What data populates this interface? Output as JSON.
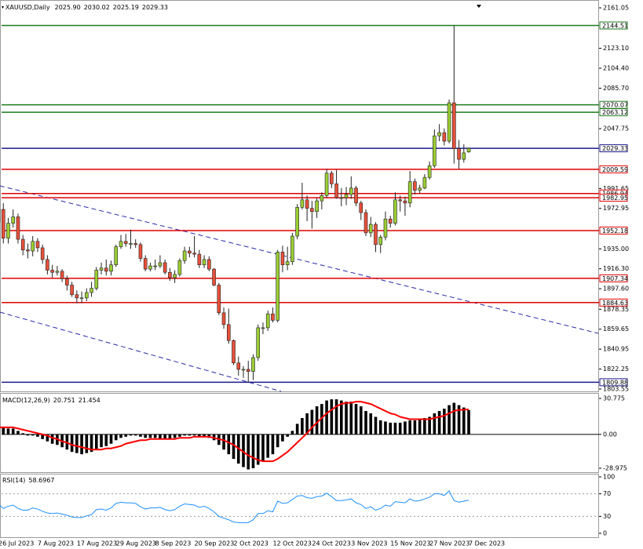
{
  "chart_data": [
    {
      "type": "candlestick",
      "title": "XAUUSD,Daily",
      "last_labels": [
        "2025.90",
        "2030.02",
        "2025.19",
        "2029.33"
      ],
      "categories": [
        "26 Jul 2023",
        "27 Jul 2023",
        "28 Jul 2023",
        "31 Jul 2023",
        "1 Aug 2023",
        "2 Aug 2023",
        "3 Aug 2023",
        "4 Aug 2023",
        "7 Aug 2023",
        "8 Aug 2023",
        "9 Aug 2023",
        "10 Aug 2023",
        "11 Aug 2023",
        "14 Aug 2023",
        "15 Aug 2023",
        "16 Aug 2023",
        "17 Aug 2023",
        "18 Aug 2023",
        "21 Aug 2023",
        "22 Aug 2023",
        "23 Aug 2023",
        "24 Aug 2023",
        "25 Aug 2023",
        "28 Aug 2023",
        "29 Aug 2023",
        "30 Aug 2023",
        "31 Aug 2023",
        "1 Sep 2023",
        "4 Sep 2023",
        "5 Sep 2023",
        "6 Sep 2023",
        "7 Sep 2023",
        "8 Sep 2023",
        "11 Sep 2023",
        "12 Sep 2023",
        "13 Sep 2023",
        "14 Sep 2023",
        "15 Sep 2023",
        "18 Sep 2023",
        "19 Sep 2023",
        "20 Sep 2023",
        "21 Sep 2023",
        "22 Sep 2023",
        "25 Sep 2023",
        "26 Sep 2023",
        "27 Sep 2023",
        "28 Sep 2023",
        "29 Sep 2023",
        "2 Oct 2023",
        "3 Oct 2023",
        "4 Oct 2023",
        "5 Oct 2023",
        "6 Oct 2023",
        "9 Oct 2023",
        "10 Oct 2023",
        "11 Oct 2023",
        "12 Oct 2023",
        "13 Oct 2023",
        "16 Oct 2023",
        "17 Oct 2023",
        "18 Oct 2023",
        "19 Oct 2023",
        "20 Oct 2023",
        "23 Oct 2023",
        "24 Oct 2023",
        "25 Oct 2023",
        "26 Oct 2023",
        "27 Oct 2023",
        "30 Oct 2023",
        "31 Oct 2023",
        "1 Nov 2023",
        "2 Nov 2023",
        "3 Nov 2023",
        "6 Nov 2023",
        "7 Nov 2023",
        "8 Nov 2023",
        "9 Nov 2023",
        "10 Nov 2023",
        "13 Nov 2023",
        "14 Nov 2023",
        "15 Nov 2023",
        "16 Nov 2023",
        "17 Nov 2023",
        "20 Nov 2023",
        "21 Nov 2023",
        "22 Nov 2023",
        "23 Nov 2023",
        "24 Nov 2023",
        "27 Nov 2023",
        "28 Nov 2023",
        "29 Nov 2023",
        "30 Nov 2023",
        "1 Dec 2023",
        "4 Dec 2023",
        "5 Dec 2023",
        "6 Dec 2023",
        "7 Dec 2023"
      ],
      "open": [
        1960,
        1972,
        1945,
        1959,
        1965,
        1944,
        1934,
        1933,
        1942,
        1936,
        1925,
        1915,
        1913,
        1914,
        1907,
        1901,
        1892,
        1889,
        1889,
        1894,
        1898,
        1915,
        1917,
        1914,
        1920,
        1937,
        1942,
        1940,
        1940,
        1939,
        1926,
        1916,
        1919,
        1919,
        1922,
        1913,
        1908,
        1911,
        1924,
        1933,
        1931,
        1930,
        1920,
        1925,
        1916,
        1901,
        1875,
        1864,
        1849,
        1828,
        1822,
        1822,
        1820,
        1833,
        1861,
        1861,
        1874,
        1868,
        1932,
        1920,
        1923,
        1947,
        1974,
        1981,
        1973,
        1970,
        1980,
        1985,
        2006,
        1996,
        1983,
        1983,
        1986,
        1992,
        1978,
        1969,
        1950,
        1958,
        1939,
        1946,
        1963,
        1959,
        1981,
        1980,
        1978,
        1998,
        1990,
        1992,
        2002,
        2013,
        2041,
        2044,
        2036,
        2072,
        2029,
        2019,
        2025.9
      ],
      "high": [
        1978,
        1978,
        1964,
        1972,
        1968,
        1948,
        1940,
        1947,
        1945,
        1939,
        1929,
        1920,
        1919,
        1916,
        1910,
        1904,
        1896,
        1895,
        1898,
        1904,
        1918,
        1922,
        1925,
        1924,
        1939,
        1948,
        1949,
        1953,
        1944,
        1941,
        1929,
        1922,
        1925,
        1929,
        1925,
        1917,
        1915,
        1926,
        1937,
        1937,
        1947,
        1934,
        1929,
        1928,
        1917,
        1903,
        1880,
        1879,
        1850,
        1834,
        1825,
        1830,
        1836,
        1864,
        1866,
        1877,
        1880,
        1934,
        1938,
        1937,
        1950,
        1977,
        1997,
        1985,
        1980,
        1983,
        1988,
        2010,
        2008,
        2009,
        1992,
        1993,
        2003,
        1994,
        1980,
        1972,
        1965,
        1960,
        1948,
        1970,
        1966,
        1988,
        1985,
        1984,
        2008,
        2001,
        1995,
        2005,
        2017,
        2047,
        2052,
        2048,
        2075,
        2144.51,
        2037,
        2033,
        2030.02
      ],
      "low": [
        1952,
        1940,
        1940,
        1955,
        1940,
        1929,
        1926,
        1928,
        1932,
        1921,
        1911,
        1908,
        1910,
        1904,
        1896,
        1890,
        1884,
        1884,
        1886,
        1890,
        1896,
        1911,
        1910,
        1910,
        1918,
        1935,
        1937,
        1935,
        1936,
        1923,
        1914,
        1914,
        1915,
        1917,
        1911,
        1905,
        1903,
        1909,
        1921,
        1927,
        1927,
        1917,
        1917,
        1914,
        1900,
        1873,
        1860,
        1846,
        1826,
        1816,
        1814,
        1810,
        1812,
        1830,
        1855,
        1858,
        1866,
        1866,
        1913,
        1915,
        1920,
        1944,
        1972,
        1961,
        1954,
        1964,
        1972,
        1983,
        1992,
        1982,
        1975,
        1976,
        1982,
        1975,
        1962,
        1947,
        1946,
        1932,
        1931,
        1943,
        1955,
        1957,
        1970,
        1966,
        1974,
        1986,
        1987,
        1991,
        2000,
        2011,
        2036,
        2032,
        2034,
        2015,
        2010,
        2016,
        2025.19
      ],
      "close": [
        1972,
        1945,
        1959,
        1965,
        1944,
        1934,
        1933,
        1942,
        1936,
        1925,
        1915,
        1913,
        1914,
        1907,
        1901,
        1892,
        1889,
        1889,
        1894,
        1898,
        1915,
        1917,
        1914,
        1920,
        1937,
        1942,
        1940,
        1940,
        1939,
        1926,
        1916,
        1919,
        1919,
        1922,
        1913,
        1908,
        1911,
        1924,
        1933,
        1931,
        1930,
        1920,
        1925,
        1916,
        1901,
        1875,
        1864,
        1849,
        1828,
        1822,
        1822,
        1820,
        1833,
        1861,
        1861,
        1874,
        1868,
        1932,
        1920,
        1923,
        1947,
        1974,
        1981,
        1973,
        1970,
        1980,
        1985,
        2006,
        1996,
        1983,
        1983,
        1986,
        1992,
        1978,
        1969,
        1950,
        1958,
        1939,
        1946,
        1963,
        1959,
        1981,
        1980,
        1978,
        1998,
        1990,
        1992,
        2002,
        2013,
        2041,
        2044,
        2036,
        2072,
        2029,
        2019,
        2025,
        2029.33
      ],
      "bull_color": "#9acd32",
      "bear_color": "#e8503a",
      "ylim": [
        1803.55,
        2161.05
      ],
      "yticks": [
        2161.05,
        {
          "value": 2123.1,
          "label": "2123.10"
        },
        {
          "value": 2104.4,
          "label": "2104.40"
        },
        {
          "value": 2085.7,
          "label": "2085.70"
        },
        2047.75,
        1991.65,
        1972.95,
        {
          "value": 1935,
          "label": "1935.00"
        },
        {
          "value": 1916.3,
          "label": "1916.30"
        },
        {
          "value": 1897.6,
          "label": "1897.60"
        },
        1878.35,
        1859.65,
        1840.95,
        1822.25,
        1803.55
      ],
      "levels": [
        {
          "value": 2144.51,
          "color": "#1e7b1e"
        },
        {
          "value": 2070.07,
          "color": "#1e7b1e"
        },
        {
          "value": 2063.12,
          "color": "#1e7b1e"
        },
        {
          "value": 2029.33,
          "color": "#1a1a8c"
        },
        {
          "value": 2009.59,
          "color": "#e00000"
        },
        {
          "value": 1986.94,
          "color": "#e00000"
        },
        {
          "value": 1982.95,
          "color": "#e00000"
        },
        {
          "value": 1952.18,
          "color": "#e00000"
        },
        {
          "value": 1907.34,
          "color": "#e00000"
        },
        {
          "value": 1884.63,
          "color": "#e00000"
        },
        {
          "value": 1809.88,
          "color": "#1a1a8c"
        }
      ],
      "xticks": [
        "26 Jul 2023",
        "7 Aug 2023",
        "17 Aug 2023",
        "29 Aug 2023",
        "8 Sep 2023",
        "20 Sep 2023",
        "2 Oct 2023",
        "12 Oct 2023",
        "24 Oct 2023",
        "3 Nov 2023",
        "15 Nov 2023",
        "27 Nov 2023",
        "7 Dec 2023"
      ]
    },
    {
      "type": "macd",
      "title": "MACD(12,26,9)",
      "series": [
        {
          "color": "#000000",
          "values": [
            8,
            6,
            5,
            5,
            3,
            1,
            -1,
            -1,
            -2,
            -4,
            -6,
            -8,
            -9,
            -11,
            -13,
            -15,
            -16,
            -17,
            -16,
            -15,
            -13,
            -11,
            -10,
            -8,
            -5,
            -3,
            -2,
            -1,
            -1,
            -2,
            -3,
            -3,
            -3,
            -4,
            -4,
            -4,
            -3,
            -2,
            -1,
            -1,
            -1,
            -2,
            -2,
            -3,
            -5,
            -9,
            -13,
            -17,
            -21,
            -25,
            -28,
            -30,
            -29,
            -26,
            -23,
            -20,
            -17,
            -11,
            -6,
            -2,
            3,
            9,
            14,
            18,
            21,
            24,
            26,
            29,
            30,
            30,
            29,
            28,
            28,
            26,
            24,
            20,
            18,
            15,
            12,
            11,
            10,
            10,
            10,
            11,
            12,
            12,
            13,
            14,
            15,
            18,
            20,
            22,
            25,
            27,
            25,
            23,
            20.751
          ]
        },
        {
          "color": "#ff0000",
          "values": [
            6,
            6,
            6,
            6,
            5,
            4,
            3,
            2,
            1,
            0,
            -1,
            -3,
            -4,
            -6,
            -7,
            -9,
            -10,
            -11,
            -12,
            -13,
            -13,
            -13,
            -12,
            -12,
            -11,
            -10,
            -8,
            -7,
            -6,
            -5,
            -5,
            -4,
            -4,
            -4,
            -4,
            -4,
            -4,
            -3,
            -3,
            -3,
            -2,
            -2,
            -2,
            -2,
            -3,
            -4,
            -5,
            -7,
            -9,
            -12,
            -15,
            -18,
            -20,
            -22,
            -23,
            -23,
            -23,
            -21,
            -18,
            -15,
            -11,
            -7,
            -3,
            1,
            6,
            10,
            14,
            18,
            21,
            24,
            26,
            27,
            27,
            28,
            28,
            27,
            26,
            24,
            22,
            20,
            18,
            17,
            15,
            14,
            13,
            13,
            13,
            13,
            13,
            14,
            15,
            16,
            18,
            20,
            21,
            21,
            21.454
          ]
        }
      ],
      "ylim": [
        -28.975,
        30.775
      ],
      "yticks": [
        30.775,
        {
          "value": 0,
          "label": "0.00"
        },
        -28.975
      ]
    },
    {
      "type": "rsi",
      "title": "RSI(14)",
      "color": "#1e90ff",
      "values": [
        52,
        44,
        48,
        50,
        44,
        41,
        41,
        45,
        43,
        39,
        36,
        35,
        36,
        34,
        32,
        29,
        28,
        28,
        31,
        33,
        42,
        43,
        41,
        45,
        53,
        55,
        54,
        54,
        53,
        47,
        43,
        45,
        45,
        46,
        42,
        40,
        42,
        48,
        52,
        51,
        50,
        46,
        48,
        44,
        38,
        30,
        27,
        24,
        20,
        19,
        19,
        19,
        24,
        35,
        35,
        40,
        38,
        57,
        53,
        54,
        60,
        66,
        67,
        63,
        62,
        65,
        66,
        71,
        65,
        58,
        58,
        59,
        61,
        54,
        51,
        44,
        47,
        41,
        44,
        50,
        48,
        56,
        55,
        54,
        61,
        57,
        58,
        61,
        64,
        70,
        70,
        67,
        75,
        58,
        55,
        57,
        58.6967
      ],
      "ylim": [
        0,
        100
      ],
      "yticks": [
        100,
        70,
        30,
        0
      ],
      "levels": [
        70,
        30
      ]
    }
  ]
}
